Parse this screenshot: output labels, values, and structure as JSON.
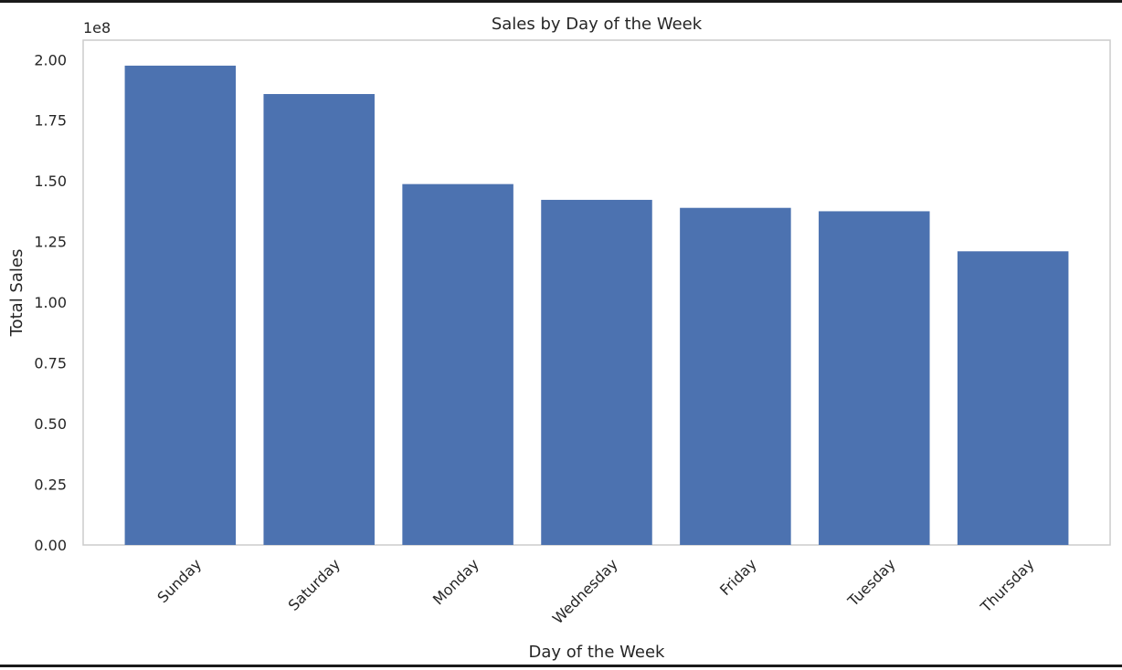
{
  "chart_data": {
    "type": "bar",
    "title": "Sales by Day of the Week",
    "xlabel": "Day of the Week",
    "ylabel": "Total Sales",
    "y_offset_label": "1e8",
    "y_scale": 100000000,
    "categories": [
      "Sunday",
      "Saturday",
      "Monday",
      "Wednesday",
      "Friday",
      "Tuesday",
      "Thursday"
    ],
    "values": [
      197500000,
      185800000,
      148700000,
      142200000,
      138900000,
      137500000,
      121000000
    ],
    "ylim": [
      0,
      208000000
    ],
    "yticks": [
      0,
      25000000,
      50000000,
      75000000,
      100000000,
      125000000,
      150000000,
      175000000,
      200000000
    ],
    "ytick_labels": [
      "0.00",
      "0.25",
      "0.50",
      "0.75",
      "1.00",
      "1.25",
      "1.50",
      "1.75",
      "2.00"
    ],
    "grid": false,
    "legend": "none",
    "bar_color": "#4c72b0",
    "axes_edge_color": "#cccccc",
    "text_color": "#262626"
  }
}
